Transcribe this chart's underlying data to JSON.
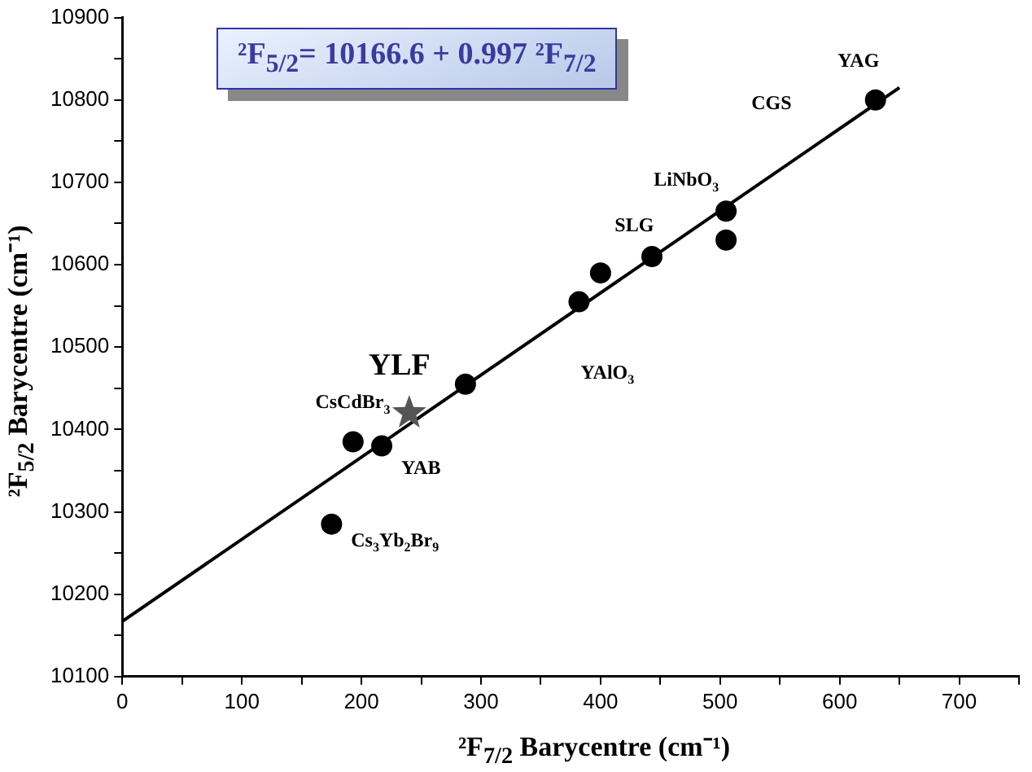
{
  "chart_data": {
    "type": "scatter",
    "xlabel": "²F$_{7/2}$ Barycentre (cm⁻¹)",
    "ylabel": "²F$_{5/2}$ Barycentre (cm⁻¹)",
    "xlim": [
      0,
      750
    ],
    "xticks": [
      0,
      {
        "value": 50,
        "label": null
      },
      100,
      {
        "value": 150,
        "label": null
      },
      200,
      {
        "value": 250,
        "label": null
      },
      300,
      {
        "value": 350,
        "label": null
      },
      400,
      {
        "value": 450,
        "label": null
      },
      500,
      {
        "value": 550,
        "label": null
      },
      600,
      {
        "value": 650,
        "label": null
      },
      700,
      {
        "value": 750,
        "label": null
      }
    ],
    "ylim": [
      10100,
      10900
    ],
    "yticks": [
      10100,
      {
        "value": 10150,
        "label": null
      },
      10200,
      {
        "value": 10250,
        "label": null
      },
      10300,
      {
        "value": 10350,
        "label": null
      },
      10400,
      {
        "value": 10450,
        "label": null
      },
      10500,
      {
        "value": 10550,
        "label": null
      },
      10600,
      {
        "value": 10650,
        "label": null
      },
      10700,
      {
        "value": 10750,
        "label": null
      },
      10800,
      {
        "value": 10850,
        "label": null
      },
      10900
    ],
    "grid": false,
    "legend": false,
    "series": [
      {
        "color": "#000000",
        "marker": "circle",
        "x": [
          175,
          193,
          217,
          287,
          382,
          400,
          443,
          505,
          505,
          630
        ],
        "values": [
          10285,
          10385,
          10380,
          10455,
          10555,
          10590,
          10610,
          10630,
          10665,
          10800
        ]
      },
      {
        "color": "#555555",
        "marker": "star",
        "x": [
          240
        ],
        "values": [
          10420
        ]
      },
      {
        "type": "line",
        "color": "#000000",
        "marker": "none",
        "x": [
          0,
          650
        ],
        "values": [
          10167,
          10815
        ]
      }
    ],
    "annotations": [
      "²F$_{5/2}$= 10166.6 + 0.997 ²F$_{7/2}$",
      "YLF",
      "CsCdBr$_{3}$",
      "YAB",
      "Cs$_{3}$Yb$_{2}$Br$_{9}$",
      "YAlO$_{3}$",
      "SLG",
      "LiNbO$_{3}$",
      "CGS",
      "YAG"
    ]
  }
}
